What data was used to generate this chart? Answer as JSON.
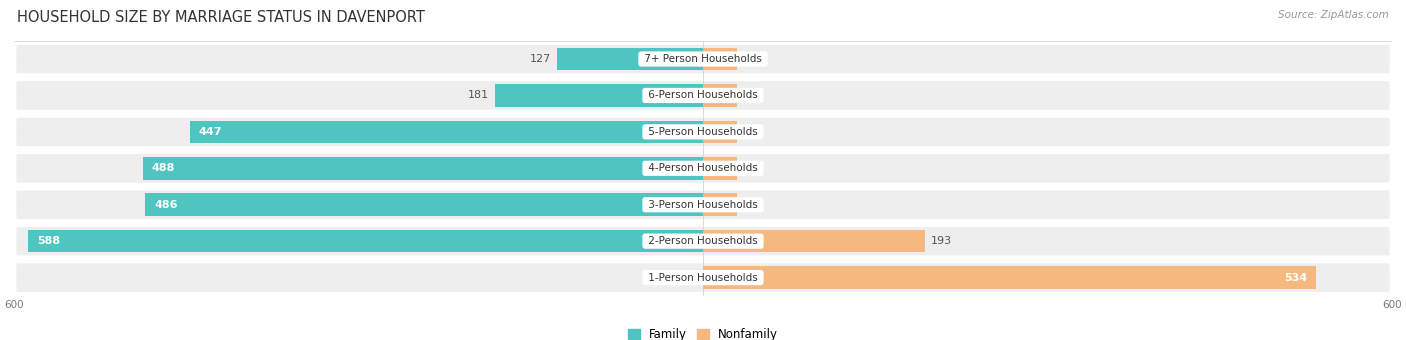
{
  "title": "HOUSEHOLD SIZE BY MARRIAGE STATUS IN DAVENPORT",
  "source": "Source: ZipAtlas.com",
  "categories": [
    "7+ Person Households",
    "6-Person Households",
    "5-Person Households",
    "4-Person Households",
    "3-Person Households",
    "2-Person Households",
    "1-Person Households"
  ],
  "family_values": [
    127,
    181,
    447,
    488,
    486,
    588,
    0
  ],
  "nonfamily_values": [
    0,
    0,
    0,
    0,
    15,
    193,
    534
  ],
  "family_color": "#4ec5c1",
  "nonfamily_color": "#f5b97f",
  "xlim_left": -600,
  "xlim_right": 600,
  "bar_height": 0.62,
  "row_bg_color": "#eeeeee",
  "row_border_color": "#dddddd",
  "title_fontsize": 10.5,
  "source_fontsize": 7.5,
  "cat_label_fontsize": 7.5,
  "value_fontsize": 8,
  "legend_fontsize": 8.5,
  "min_nonfamily_stub": 30,
  "min_family_stub": 30
}
